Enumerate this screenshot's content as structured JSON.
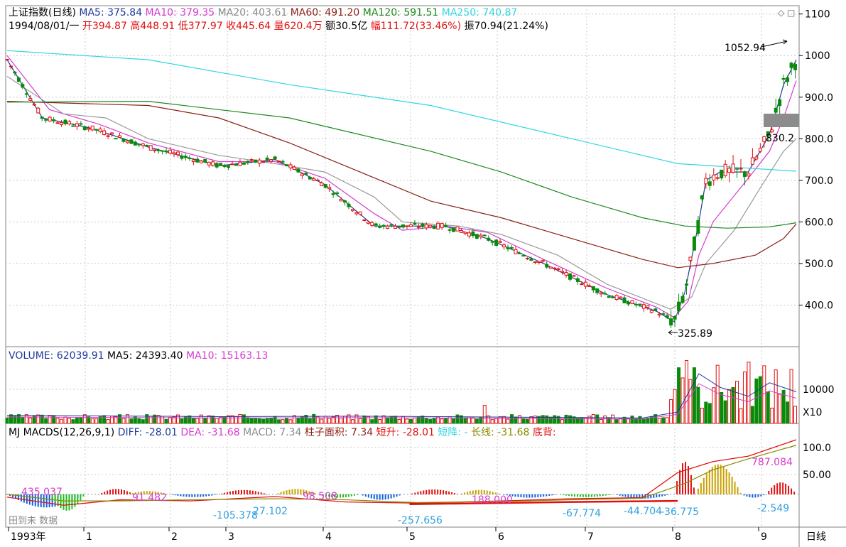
{
  "header": {
    "line1": [
      {
        "text": "上证指数(日线)",
        "color": "#000000"
      },
      {
        "text": "MA5: 375.84",
        "color": "#1f3a9a"
      },
      {
        "text": "MA10: 379.35",
        "color": "#d63ad0"
      },
      {
        "text": "MA20: 403.61",
        "color": "#8a8a8a"
      },
      {
        "text": "MA60: 491.20",
        "color": "#8b1f14"
      },
      {
        "text": "MA120: 591.51",
        "color": "#1f8a1f"
      },
      {
        "text": "MA250: 740.87",
        "color": "#30d6e0"
      }
    ],
    "line2": [
      {
        "text": "1994/08/01/一",
        "color": "#000000"
      },
      {
        "text": "开394.87",
        "color": "#e01010"
      },
      {
        "text": "高448.91",
        "color": "#e01010"
      },
      {
        "text": "低377.97",
        "color": "#e01010"
      },
      {
        "text": "收445.64",
        "color": "#e01010"
      },
      {
        "text": "量620.4万",
        "color": "#e01010"
      },
      {
        "text": "额30.5亿",
        "color": "#000000"
      },
      {
        "text": "幅111.72(33.46%)",
        "color": "#e01010"
      },
      {
        "text": "振70.94(21.24%)",
        "color": "#000000"
      }
    ]
  },
  "price_axis": {
    "labels": [
      "1100",
      "1000",
      "900.0",
      "800.0",
      "700.0",
      "600.0",
      "500.0",
      "400.0"
    ]
  },
  "annotations": {
    "high": "1052.94",
    "low": "325.89",
    "marker": "830.2"
  },
  "volume_header": [
    {
      "text": "VOLUME: 62039.91",
      "color": "#1f3a9a"
    },
    {
      "text": "MA5: 24393.40",
      "color": "#000000"
    },
    {
      "text": "MA10: 15163.13",
      "color": "#d63ad0"
    }
  ],
  "volume_axis": {
    "labels": [
      "10000",
      "X10"
    ]
  },
  "macd_header": [
    {
      "text": "MJ",
      "color": "#000000"
    },
    {
      "text": "MACDS(12,26,9,1)",
      "color": "#000000"
    },
    {
      "text": "DIFF: -28.01",
      "color": "#1f3a9a"
    },
    {
      "text": "DEA: -31.68",
      "color": "#d63ad0"
    },
    {
      "text": "MACD: 7.34",
      "color": "#8a8a8a"
    },
    {
      "text": "柱子面积: 7.34",
      "color": "#8b1f14"
    },
    {
      "text": "短升: -28.01",
      "color": "#e01010"
    },
    {
      "text": "短降: -",
      "color": "#30d6e0"
    },
    {
      "text": "长线: -31.68",
      "color": "#8a8a00"
    },
    {
      "text": "底背:",
      "color": "#e01010"
    }
  ],
  "macd_axis": {
    "labels": [
      "100.0",
      "50.00"
    ]
  },
  "macd_labels": [
    "435.037",
    "91.482",
    "98.508",
    "188.000",
    "-105.378",
    "27.102",
    "-257.656",
    "-67.774",
    "-44.704",
    "-36.775",
    "787.084",
    "-2.549"
  ],
  "watermark": "田到未 数据",
  "time_axis": {
    "labels": [
      "1993年",
      "1",
      "2",
      "3",
      "4",
      "5",
      "6",
      "7",
      "8",
      "9"
    ],
    "period": "日线"
  },
  "colors": {
    "up": "#e01010",
    "down": "#0a8a0a",
    "grid": "#bfbfbf",
    "border": "#808080"
  },
  "chart_data": [
    {
      "type": "candlestick",
      "panel": "price",
      "ylim": [
        300,
        1120
      ],
      "log_scale": false,
      "grid": true,
      "series": [
        {
          "name": "MA5",
          "points": [
            [
              0,
              990
            ],
            [
              50,
              850
            ],
            [
              120,
              825
            ],
            [
              200,
              780
            ],
            [
              300,
              735
            ],
            [
              380,
              750
            ],
            [
              450,
              690
            ],
            [
              520,
              590
            ],
            [
              560,
              590
            ],
            [
              620,
              590
            ],
            [
              680,
              560
            ],
            [
              760,
              500
            ],
            [
              850,
              425
            ],
            [
              920,
              385
            ],
            [
              945,
              360
            ],
            [
              960,
              430
            ],
            [
              980,
              600
            ],
            [
              990,
              700
            ],
            [
              1010,
              720
            ],
            [
              1050,
              720
            ],
            [
              1080,
              810
            ],
            [
              1100,
              930
            ],
            [
              1118,
              990
            ]
          ]
        },
        {
          "name": "MA10",
          "points": [
            [
              0,
              1000
            ],
            [
              60,
              870
            ],
            [
              130,
              835
            ],
            [
              200,
              790
            ],
            [
              300,
              745
            ],
            [
              380,
              745
            ],
            [
              450,
              705
            ],
            [
              520,
              620
            ],
            [
              560,
              580
            ],
            [
              620,
              590
            ],
            [
              680,
              575
            ],
            [
              760,
              510
            ],
            [
              850,
              440
            ],
            [
              920,
              395
            ],
            [
              945,
              370
            ],
            [
              965,
              410
            ],
            [
              980,
              520
            ],
            [
              1000,
              600
            ],
            [
              1050,
              705
            ],
            [
              1080,
              770
            ],
            [
              1100,
              850
            ],
            [
              1118,
              940
            ]
          ]
        },
        {
          "name": "MA20",
          "points": [
            [
              0,
              950
            ],
            [
              80,
              860
            ],
            [
              140,
              850
            ],
            [
              200,
              800
            ],
            [
              300,
              760
            ],
            [
              380,
              740
            ],
            [
              450,
              720
            ],
            [
              520,
              660
            ],
            [
              560,
              600
            ],
            [
              640,
              590
            ],
            [
              700,
              570
            ],
            [
              780,
              520
            ],
            [
              850,
              450
            ],
            [
              940,
              390
            ],
            [
              970,
              420
            ],
            [
              990,
              500
            ],
            [
              1030,
              580
            ],
            [
              1070,
              690
            ],
            [
              1100,
              770
            ],
            [
              1118,
              800
            ]
          ]
        },
        {
          "name": "MA60",
          "points": [
            [
              0,
              890
            ],
            [
              200,
              880
            ],
            [
              300,
              850
            ],
            [
              400,
              790
            ],
            [
              500,
              720
            ],
            [
              600,
              650
            ],
            [
              700,
              610
            ],
            [
              800,
              560
            ],
            [
              900,
              510
            ],
            [
              950,
              490
            ],
            [
              1000,
              500
            ],
            [
              1060,
              520
            ],
            [
              1100,
              560
            ],
            [
              1118,
              595
            ]
          ]
        },
        {
          "name": "MA120",
          "points": [
            [
              0,
              888
            ],
            [
              200,
              890
            ],
            [
              400,
              850
            ],
            [
              500,
              810
            ],
            [
              600,
              770
            ],
            [
              700,
              720
            ],
            [
              800,
              660
            ],
            [
              900,
              610
            ],
            [
              960,
              590
            ],
            [
              1020,
              585
            ],
            [
              1080,
              588
            ],
            [
              1118,
              598
            ]
          ]
        },
        {
          "name": "MA250",
          "points": [
            [
              0,
              1012
            ],
            [
              200,
              990
            ],
            [
              400,
              930
            ],
            [
              600,
              880
            ],
            [
              800,
              800
            ],
            [
              950,
              740
            ],
            [
              1118,
              722
            ]
          ]
        }
      ],
      "marks": {
        "high": 1052.94,
        "low": 325.89,
        "level": 830.2
      }
    },
    {
      "type": "bar",
      "panel": "volume",
      "ylim": [
        0,
        17000
      ],
      "unit": "X10",
      "series": [
        {
          "name": "VOLUME",
          "last": 62039.91
        },
        {
          "name": "MA5",
          "last": 24393.4
        },
        {
          "name": "MA10",
          "last": 15163.13
        }
      ]
    },
    {
      "type": "bar",
      "panel": "macd",
      "ylim": [
        -60,
        130
      ],
      "series": [
        {
          "name": "DIFF",
          "last": -28.01
        },
        {
          "name": "DEA",
          "last": -31.68
        },
        {
          "name": "MACD",
          "last": 7.34
        }
      ]
    }
  ]
}
